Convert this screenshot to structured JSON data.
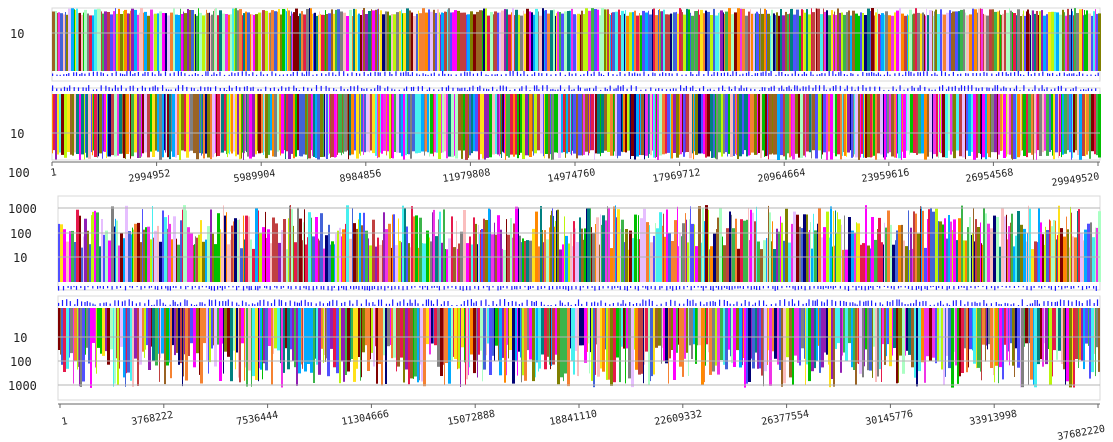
{
  "chart_data": [
    {
      "type": "bar",
      "panels": [
        {
          "position": "upper",
          "direction": "up",
          "y_tick_labels": [
            "10"
          ]
        },
        {
          "position": "lower",
          "direction": "down",
          "y_tick_labels": [
            "10",
            "100"
          ]
        }
      ],
      "x_tick_labels": [
        "1",
        "2994952",
        "5989904",
        "8984856",
        "11979808",
        "14974760",
        "17969712",
        "20964664",
        "23959616",
        "26954568",
        "29949520"
      ],
      "x_range": [
        1,
        29949520
      ],
      "grid": true,
      "legend": "none"
    },
    {
      "type": "bar",
      "panels": [
        {
          "position": "upper",
          "direction": "up",
          "y_tick_labels": [
            "1000",
            "100",
            "10"
          ]
        },
        {
          "position": "lower",
          "direction": "down",
          "y_tick_labels": [
            "10",
            "100",
            "1000"
          ]
        }
      ],
      "x_tick_labels": [
        "1",
        "3768222",
        "7536444",
        "11304666",
        "15072888",
        "18841110",
        "22609332",
        "26377554",
        "30145776",
        "33913998",
        "37682220"
      ],
      "x_range": [
        1,
        37682220
      ],
      "grid": true,
      "legend": "none"
    }
  ],
  "colors": {
    "coverage_line": "#1a1aff",
    "gridline": "#b4b4b4",
    "axis": "#666666",
    "palette": [
      "#e6194b",
      "#3cb44b",
      "#ffe119",
      "#4363d8",
      "#f58231",
      "#911eb4",
      "#46f0f0",
      "#f032e6",
      "#bcf60c",
      "#fabebe",
      "#008080",
      "#e6beff",
      "#9a6324",
      "#800000",
      "#aaffc3",
      "#808000",
      "#000075",
      "#808080",
      "#00c000",
      "#ff00ff",
      "#00aaff",
      "#ff8800",
      "#5050ff",
      "#c04040"
    ]
  }
}
